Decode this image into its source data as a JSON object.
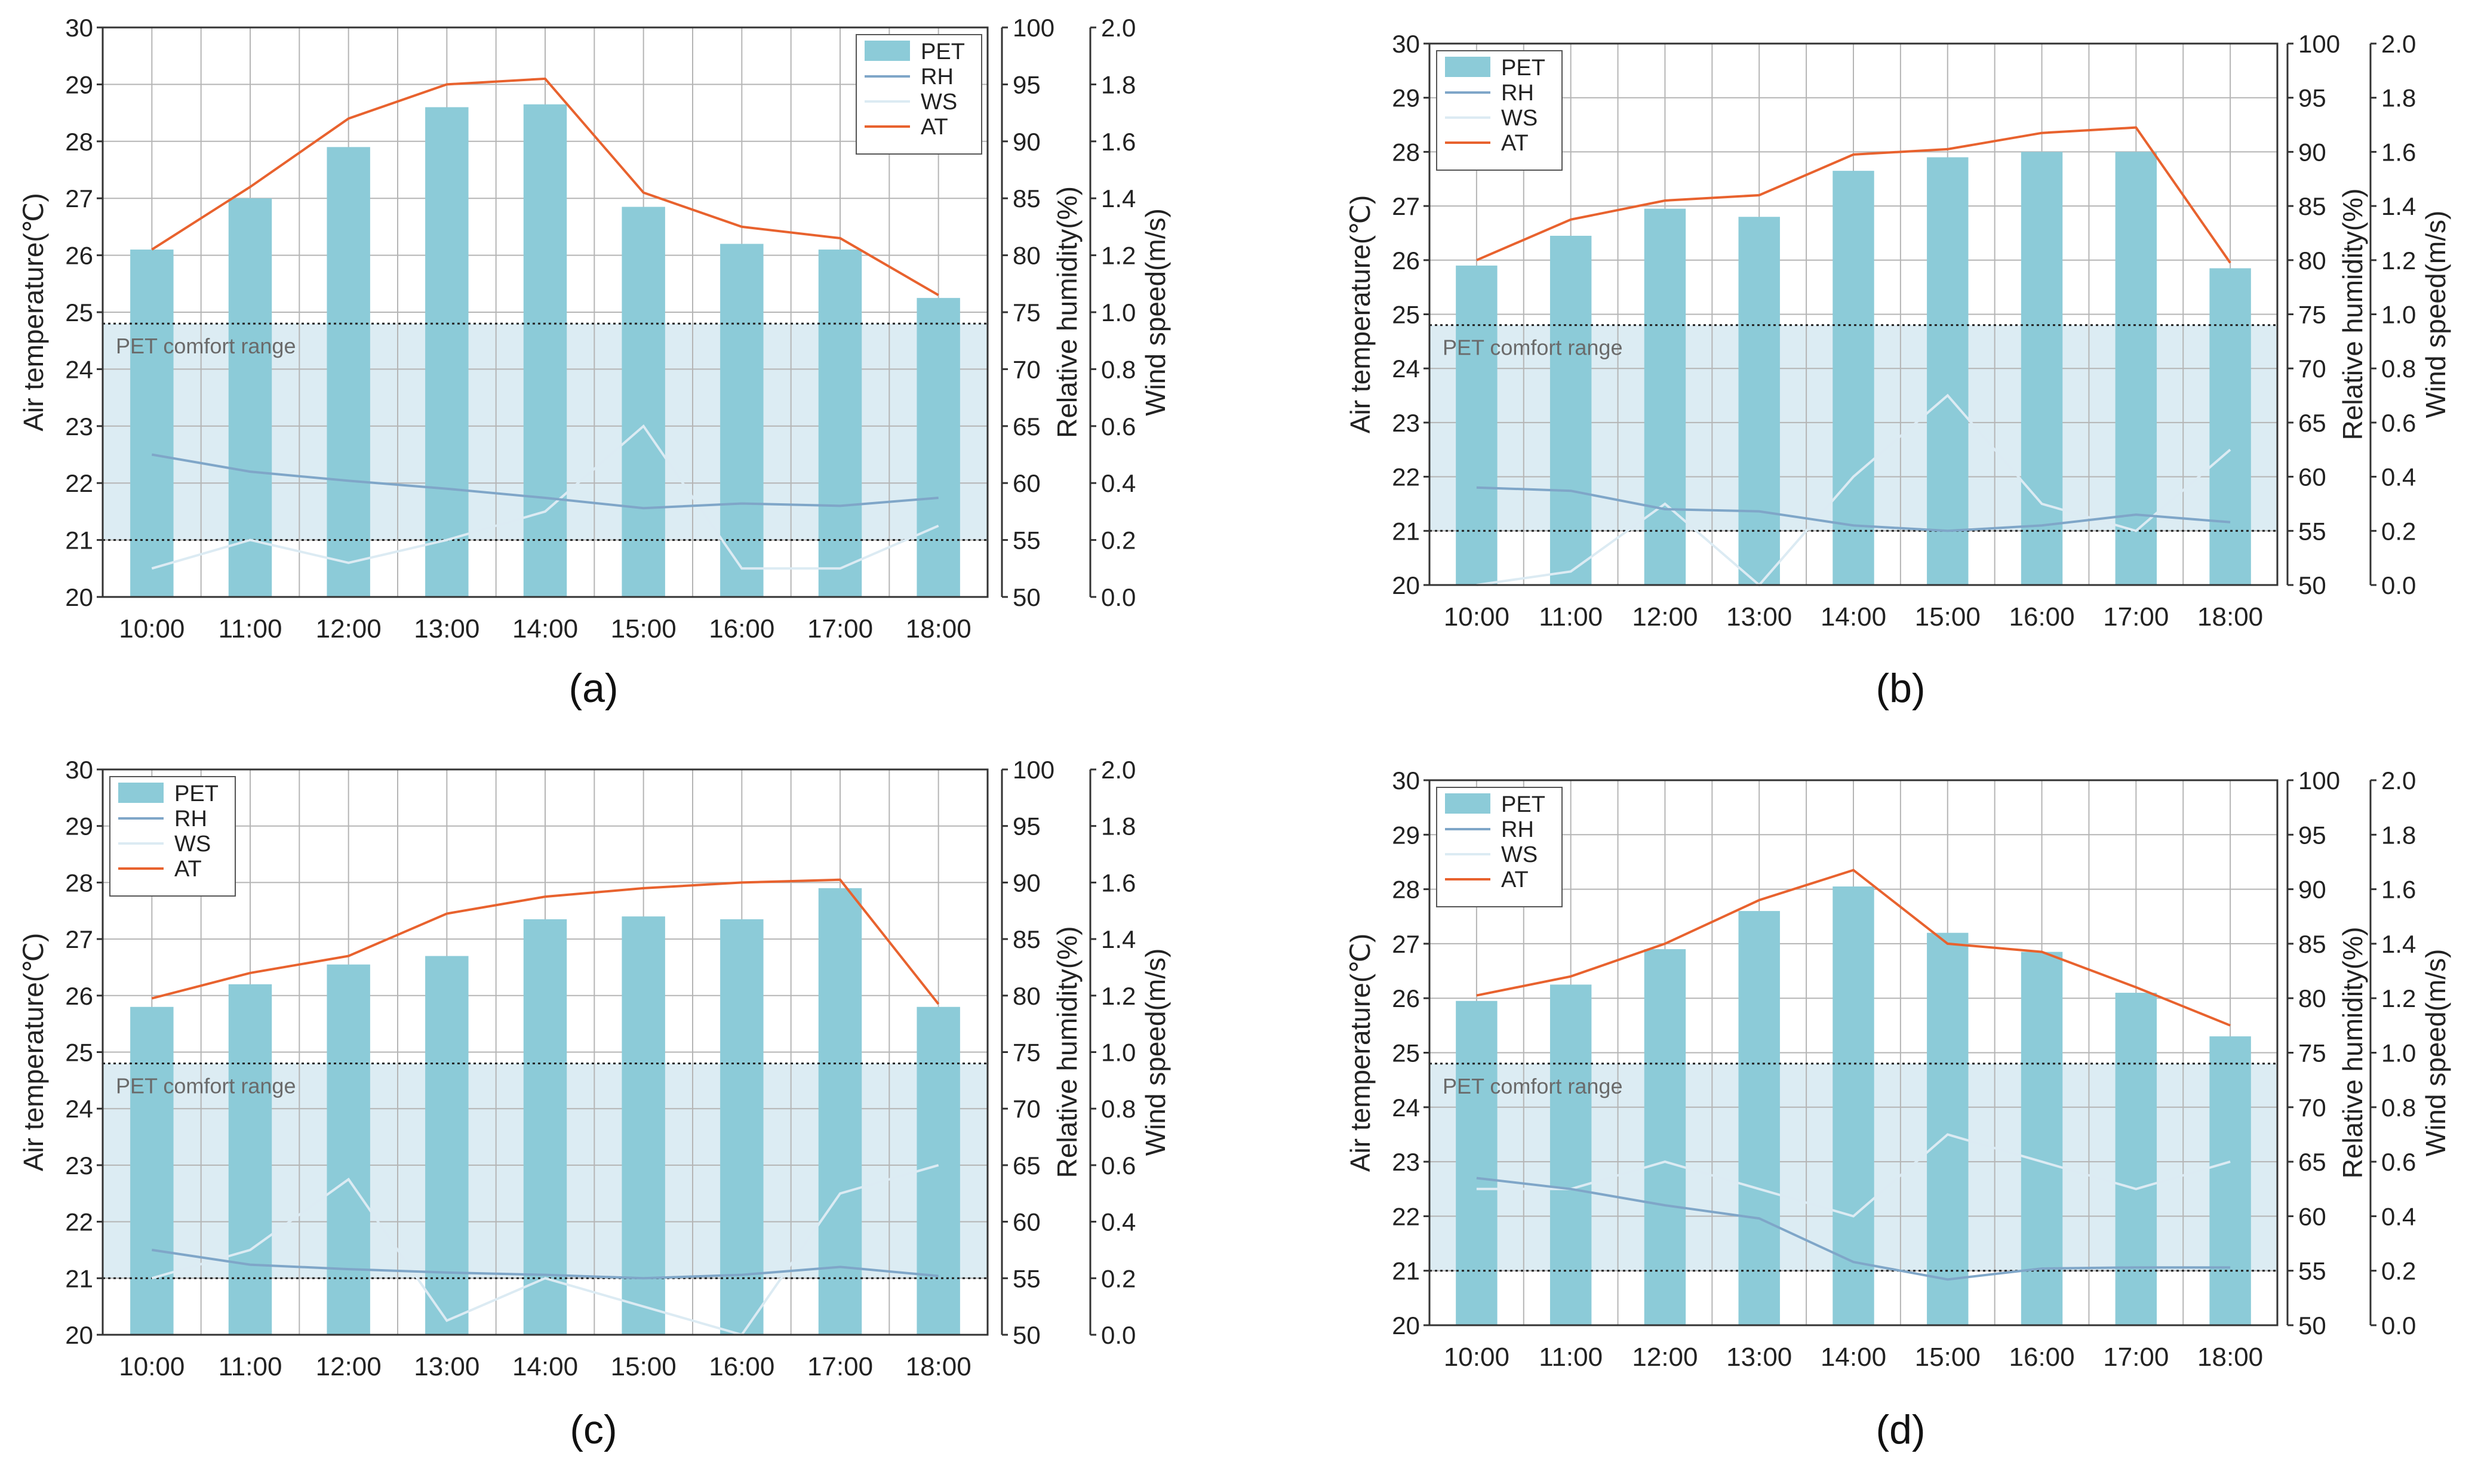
{
  "figure": {
    "x_categories": [
      "10:00",
      "11:00",
      "12:00",
      "13:00",
      "14:00",
      "15:00",
      "16:00",
      "17:00",
      "18:00"
    ],
    "y_left_label": "Air temperature(℃)",
    "y_right1_label": "Relative humidity(%)",
    "y_right2_label": "Wind speed(m/s)",
    "y_left_ticks": [
      "20",
      "21",
      "22",
      "23",
      "24",
      "25",
      "26",
      "27",
      "28",
      "29",
      "30"
    ],
    "y_right1_ticks": [
      "50",
      "55",
      "60",
      "65",
      "70",
      "75",
      "80",
      "85",
      "90",
      "95",
      "100"
    ],
    "y_right2_ticks": [
      "0.0",
      "0.2",
      "0.4",
      "0.6",
      "0.8",
      "1.0",
      "1.2",
      "1.4",
      "1.6",
      "1.8",
      "2.0"
    ],
    "comfort_label": "PET comfort range",
    "legend": [
      "PET",
      "RH",
      "WS",
      "AT"
    ],
    "colors": {
      "pet": "#8ccbd8",
      "rh": "#7fa6c8",
      "ws": "#dcebf3",
      "at": "#e8622e",
      "comfort": "#dcecf3",
      "grid": "#b5b5b5",
      "axis": "#333333"
    }
  },
  "chart_data": [
    {
      "panel": "(a)",
      "type": "bar",
      "categories": [
        "10:00",
        "11:00",
        "12:00",
        "13:00",
        "14:00",
        "15:00",
        "16:00",
        "17:00",
        "18:00"
      ],
      "ylim": [
        20,
        30
      ],
      "y2lim": [
        50,
        100
      ],
      "y3lim": [
        0,
        2
      ],
      "comfort_range": [
        21,
        24.8
      ],
      "legend_position": "top-right",
      "series": [
        {
          "name": "PET",
          "axis": "left",
          "values": [
            26.1,
            27.0,
            27.9,
            28.6,
            28.65,
            26.85,
            26.2,
            26.1,
            25.25
          ]
        },
        {
          "name": "RH",
          "axis": "right1",
          "values": [
            62.5,
            61.0,
            60.2,
            59.5,
            58.7,
            57.8,
            58.2,
            58.0,
            58.7
          ]
        },
        {
          "name": "WS",
          "axis": "right2",
          "values": [
            0.1,
            0.2,
            0.12,
            0.2,
            0.3,
            0.6,
            0.1,
            0.1,
            0.25
          ]
        },
        {
          "name": "AT",
          "axis": "left",
          "values": [
            26.1,
            27.2,
            28.4,
            29.0,
            29.1,
            27.1,
            26.5,
            26.3,
            25.3
          ]
        }
      ]
    },
    {
      "panel": "(b)",
      "type": "bar",
      "categories": [
        "10:00",
        "11:00",
        "12:00",
        "13:00",
        "14:00",
        "15:00",
        "16:00",
        "17:00",
        "18:00"
      ],
      "ylim": [
        20,
        30
      ],
      "y2lim": [
        50,
        100
      ],
      "y3lim": [
        0,
        2
      ],
      "comfort_range": [
        21,
        24.8
      ],
      "legend_position": "top-left",
      "series": [
        {
          "name": "PET",
          "axis": "left",
          "values": [
            25.9,
            26.45,
            26.95,
            26.8,
            27.65,
            27.9,
            28.0,
            28.0,
            25.85
          ]
        },
        {
          "name": "RH",
          "axis": "right1",
          "values": [
            59.0,
            58.7,
            57.0,
            56.8,
            55.5,
            55.0,
            55.5,
            56.5,
            55.8
          ]
        },
        {
          "name": "WS",
          "axis": "right2",
          "values": [
            0.0,
            0.05,
            0.3,
            0.0,
            0.4,
            0.7,
            0.3,
            0.2,
            0.5
          ]
        },
        {
          "name": "AT",
          "axis": "left",
          "values": [
            26.0,
            26.75,
            27.1,
            27.2,
            27.95,
            28.05,
            28.35,
            28.45,
            25.95
          ]
        }
      ]
    },
    {
      "panel": "(c)",
      "type": "bar",
      "categories": [
        "10:00",
        "11:00",
        "12:00",
        "13:00",
        "14:00",
        "15:00",
        "16:00",
        "17:00",
        "18:00"
      ],
      "ylim": [
        20,
        30
      ],
      "y2lim": [
        50,
        100
      ],
      "y3lim": [
        0,
        2
      ],
      "comfort_range": [
        21,
        24.8
      ],
      "legend_position": "top-left",
      "series": [
        {
          "name": "PET",
          "axis": "left",
          "values": [
            25.8,
            26.2,
            26.55,
            26.7,
            27.35,
            27.4,
            27.35,
            27.9,
            25.8
          ]
        },
        {
          "name": "RH",
          "axis": "right1",
          "values": [
            57.5,
            56.2,
            55.8,
            55.5,
            55.3,
            55.0,
            55.3,
            56.0,
            55.2
          ]
        },
        {
          "name": "WS",
          "axis": "right2",
          "values": [
            0.2,
            0.3,
            0.55,
            0.05,
            0.2,
            0.1,
            0.0,
            0.5,
            0.6
          ]
        },
        {
          "name": "AT",
          "axis": "left",
          "values": [
            25.95,
            26.4,
            26.7,
            27.45,
            27.75,
            27.9,
            28.0,
            28.05,
            25.85
          ]
        }
      ]
    },
    {
      "panel": "(d)",
      "type": "bar",
      "categories": [
        "10:00",
        "11:00",
        "12:00",
        "13:00",
        "14:00",
        "15:00",
        "16:00",
        "17:00",
        "18:00"
      ],
      "ylim": [
        20,
        30
      ],
      "y2lim": [
        50,
        100
      ],
      "y3lim": [
        0,
        2
      ],
      "comfort_range": [
        21,
        24.8
      ],
      "legend_position": "top-left",
      "series": [
        {
          "name": "PET",
          "axis": "left",
          "values": [
            25.95,
            26.25,
            26.9,
            27.6,
            28.05,
            27.2,
            26.85,
            26.1,
            25.3
          ]
        },
        {
          "name": "RH",
          "axis": "right1",
          "values": [
            63.5,
            62.5,
            61.0,
            59.8,
            55.8,
            54.2,
            55.2,
            55.3,
            55.3
          ]
        },
        {
          "name": "WS",
          "axis": "right2",
          "values": [
            0.5,
            0.5,
            0.6,
            0.5,
            0.4,
            0.7,
            0.6,
            0.5,
            0.6
          ]
        },
        {
          "name": "AT",
          "axis": "left",
          "values": [
            26.05,
            26.4,
            27.0,
            27.8,
            28.35,
            27.0,
            26.85,
            26.2,
            25.5
          ]
        }
      ]
    }
  ]
}
